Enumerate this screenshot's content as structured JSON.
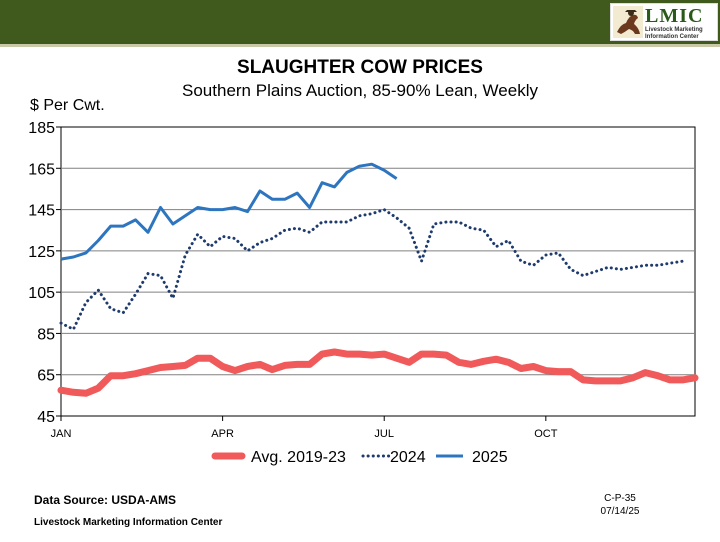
{
  "logo": {
    "name": "LMIC",
    "line1": "Livestock Marketing",
    "line2": "Information Center"
  },
  "title": "SLAUGHTER COW PRICES",
  "subtitle": "Southern Plains Auction, 85-90% Lean, Weekly",
  "footer": {
    "source": "Data Source:  USDA-AMS",
    "org": "Livestock Marketing Information Center",
    "code": "C-P-35",
    "date": "07/14/25"
  },
  "colors": {
    "banner": "#3f5a1c",
    "avg": "#f05a5a",
    "s2024": "#1f3b6e",
    "s2025": "#2e75c0"
  },
  "chart_data": {
    "type": "line",
    "title": "SLAUGHTER COW PRICES",
    "ylabel": "$ Per Cwt.",
    "xlabel": "",
    "ylim": [
      45,
      185
    ],
    "yticks": [
      45,
      65,
      85,
      105,
      125,
      145,
      165,
      185
    ],
    "xlim": [
      1,
      52
    ],
    "xticks": [
      {
        "week": 1,
        "label": "JAN"
      },
      {
        "week": 14,
        "label": "APR"
      },
      {
        "week": 27,
        "label": "JUL"
      },
      {
        "week": 40,
        "label": "OCT"
      }
    ],
    "grid": true,
    "legend": "bottom",
    "series": [
      {
        "name": "Avg. 2019-23",
        "style": "thick",
        "values": [
          57.5,
          56.5,
          56,
          58.5,
          64.5,
          64.5,
          65.5,
          67,
          68.5,
          69,
          69.5,
          73,
          73,
          69,
          67,
          69,
          70,
          67.5,
          69.5,
          70,
          70,
          75,
          76,
          75,
          75,
          74.5,
          75,
          73,
          71,
          75,
          75,
          74.5,
          71,
          70,
          71.5,
          72.5,
          71,
          68,
          69,
          67,
          66.5,
          66.5,
          62.5,
          62,
          62,
          62,
          63.5,
          66,
          64.5,
          62.5,
          62.5,
          63.5
        ]
      },
      {
        "name": "2024",
        "style": "dotted",
        "values": [
          90,
          87,
          100,
          106,
          97,
          95,
          104,
          114,
          113,
          102,
          123,
          133,
          127,
          132,
          131,
          125,
          129,
          131,
          135,
          136,
          134,
          139,
          139,
          139,
          142,
          143,
          145,
          141,
          136,
          120,
          138,
          139,
          139,
          136,
          135,
          127,
          130,
          120,
          118,
          123,
          124,
          116,
          113,
          115,
          117,
          116,
          117,
          118,
          118,
          119,
          120,
          null
        ]
      },
      {
        "name": "2025",
        "style": "solid",
        "values": [
          121,
          122,
          124,
          130,
          137,
          137,
          140,
          134,
          146,
          138,
          142,
          146,
          145,
          145,
          146,
          144,
          154,
          150,
          150,
          153,
          146,
          158,
          156,
          163,
          166,
          167,
          164,
          160
        ]
      }
    ]
  }
}
